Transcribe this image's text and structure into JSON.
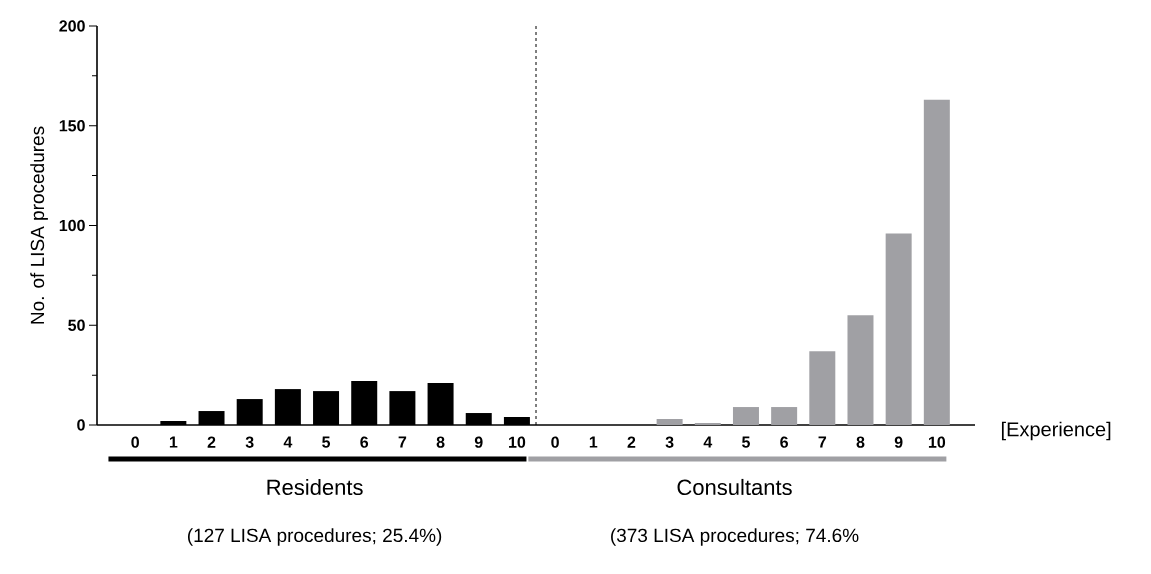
{
  "chart_data": {
    "type": "bar",
    "xlabel": "[Experience]",
    "ylabel": "No. of LISA procedures",
    "categories": [
      "0",
      "1",
      "2",
      "3",
      "4",
      "5",
      "6",
      "7",
      "8",
      "9",
      "10",
      "0",
      "1",
      "2",
      "3",
      "4",
      "5",
      "6",
      "7",
      "8",
      "9",
      "10"
    ],
    "series": [
      {
        "name": "Residents",
        "color": "#000000",
        "values": [
          0,
          2,
          7,
          13,
          18,
          17,
          22,
          17,
          21,
          6,
          4,
          null,
          null,
          null,
          null,
          null,
          null,
          null,
          null,
          null,
          null,
          null
        ]
      },
      {
        "name": "Consultants",
        "color": "#a0a0a4",
        "values": [
          null,
          null,
          null,
          null,
          null,
          null,
          null,
          null,
          null,
          null,
          null,
          0,
          0,
          0,
          3,
          1,
          9,
          9,
          37,
          55,
          96,
          163
        ]
      }
    ],
    "ylim": [
      0,
      200
    ],
    "yticks": [
      0,
      50,
      100,
      150,
      200
    ],
    "annotations": [
      "(127 LISA procedures; 25.4%)",
      "(373 LISA procedures; 74.6%"
    ],
    "legend": "bottom",
    "grid": false
  }
}
